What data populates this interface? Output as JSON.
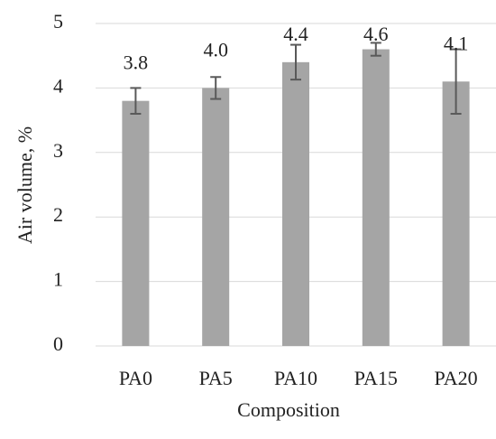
{
  "chart_data": {
    "type": "bar",
    "x_label": "Composition",
    "y_label": "Air volume, %",
    "categories": [
      "PA0",
      "PA5",
      "PA10",
      "PA15",
      "PA20"
    ],
    "values": [
      3.8,
      4.0,
      4.4,
      4.6,
      4.1
    ],
    "value_labels": [
      "3.8",
      "4.0",
      "4.4",
      "4.6",
      "4.1"
    ],
    "errors": [
      0.2,
      0.17,
      0.27,
      0.1,
      0.5
    ],
    "color": "#a5a5a5",
    "error_color": "#595959",
    "ylim": [
      0,
      5
    ],
    "yticks": [
      0,
      1,
      2,
      3,
      4,
      5
    ],
    "grid": true
  }
}
